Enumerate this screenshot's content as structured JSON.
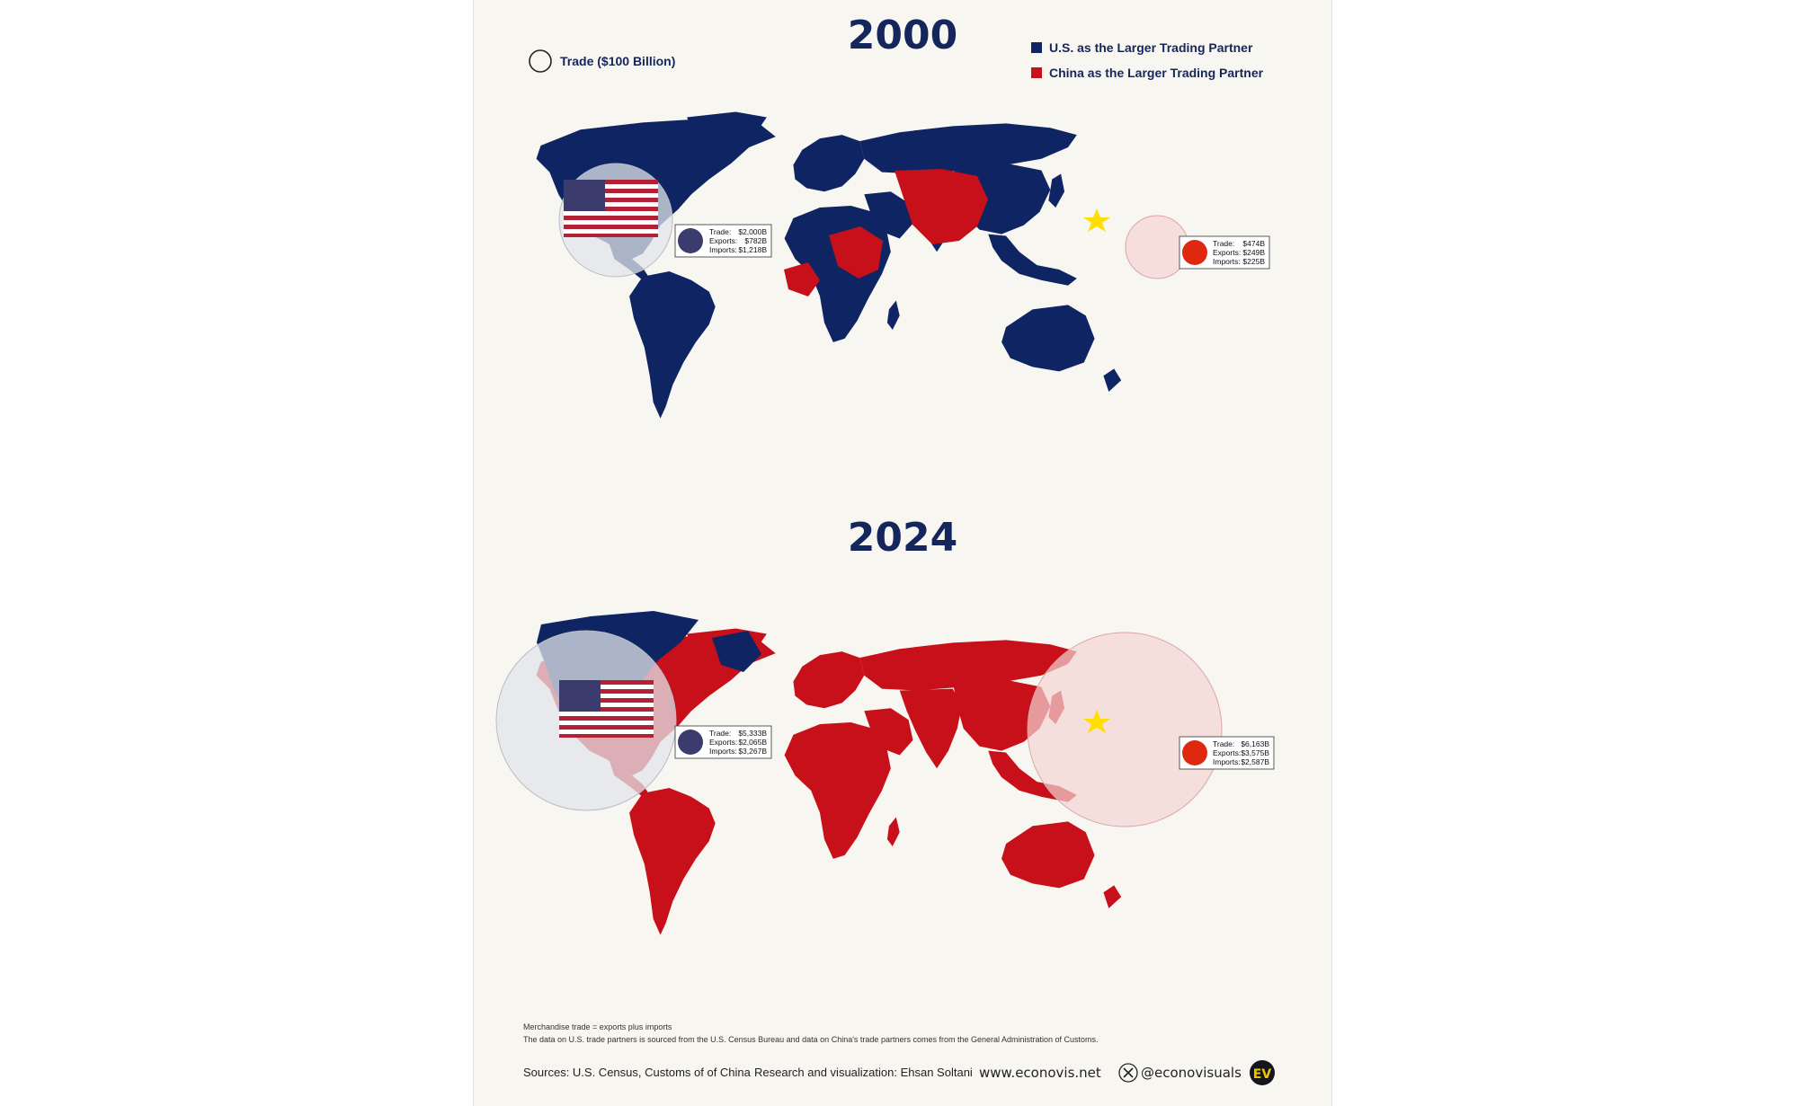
{
  "colors": {
    "us": "#0f2463",
    "china": "#c8101a",
    "background": "#f8f6f1",
    "text": "#15265c"
  },
  "legend": {
    "size_label": "Trade ($100 Billion)",
    "us_label": "U.S. as the Larger Trading Partner",
    "china_label": "China as the Larger Trading Partner"
  },
  "maps": [
    {
      "year": "2000",
      "us": {
        "trade": "$2,000B",
        "exports": "$782B",
        "imports": "$1,218B"
      },
      "china": {
        "trade": "$474B",
        "exports": "$249B",
        "imports": "$225B"
      }
    },
    {
      "year": "2024",
      "us": {
        "trade": "$5,333B",
        "exports": "$2,065B",
        "imports": "$3,267B"
      },
      "china": {
        "trade": "$6,163B",
        "exports": "$3,575B",
        "imports": "$2,587B"
      }
    }
  ],
  "stat_labels": {
    "trade": "Trade:",
    "exports": "Exports:",
    "imports": "Imports:"
  },
  "notes": {
    "line1": "Merchandise trade = exports plus imports",
    "line2": "The data on U.S. trade partners is sourced from the U.S. Census Bureau and data on China's trade partners comes from the General Administration of Customs."
  },
  "footer": {
    "sources": "Sources: U.S. Census, Customs of of China",
    "research": "Research and visualization: Ehsan Soltani",
    "website": "www.econovis.net",
    "social": "@econovisuals",
    "logo": "EV"
  }
}
